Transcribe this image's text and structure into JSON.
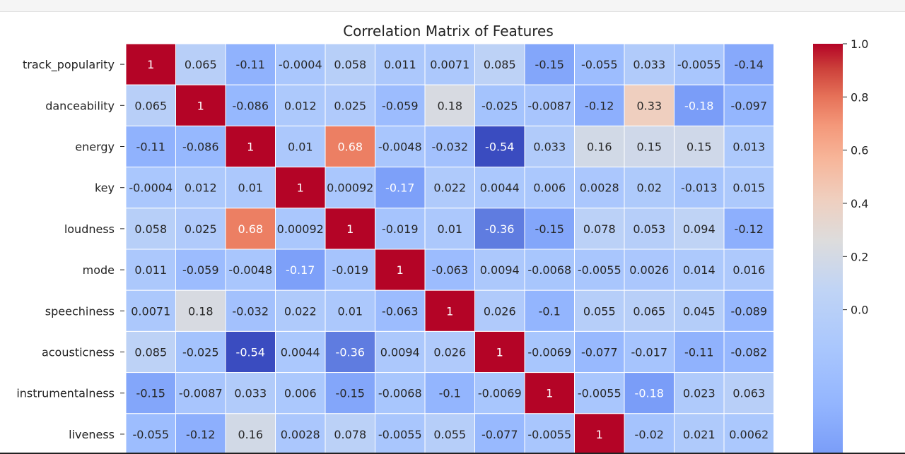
{
  "chart_data": {
    "type": "heatmap",
    "title": "Correlation Matrix of Features",
    "row_labels": [
      "track_popularity",
      "danceability",
      "energy",
      "key",
      "loudness",
      "mode",
      "speechiness",
      "acousticness",
      "instrumentalness",
      "liveness"
    ],
    "n_columns": 13,
    "values": [
      [
        "1",
        "0.065",
        "-0.11",
        "-0.0004",
        "0.058",
        "0.011",
        "0.0071",
        "0.085",
        "-0.15",
        "-0.055",
        "0.033",
        "-0.0055",
        "-0.14"
      ],
      [
        "0.065",
        "1",
        "-0.086",
        "0.012",
        "0.025",
        "-0.059",
        "0.18",
        "-0.025",
        "-0.0087",
        "-0.12",
        "0.33",
        "-0.18",
        "-0.097"
      ],
      [
        "-0.11",
        "-0.086",
        "1",
        "0.01",
        "0.68",
        "-0.0048",
        "-0.032",
        "-0.54",
        "0.033",
        "0.16",
        "0.15",
        "0.15",
        "0.013"
      ],
      [
        "-0.0004",
        "0.012",
        "0.01",
        "1",
        "0.00092",
        "-0.17",
        "0.022",
        "0.0044",
        "0.006",
        "0.0028",
        "0.02",
        "-0.013",
        "0.015"
      ],
      [
        "0.058",
        "0.025",
        "0.68",
        "0.00092",
        "1",
        "-0.019",
        "0.01",
        "-0.36",
        "-0.15",
        "0.078",
        "0.053",
        "0.094",
        "-0.12"
      ],
      [
        "0.011",
        "-0.059",
        "-0.0048",
        "-0.17",
        "-0.019",
        "1",
        "-0.063",
        "0.0094",
        "-0.0068",
        "-0.0055",
        "0.0026",
        "0.014",
        "0.016"
      ],
      [
        "0.0071",
        "0.18",
        "-0.032",
        "0.022",
        "0.01",
        "-0.063",
        "1",
        "0.026",
        "-0.1",
        "0.055",
        "0.065",
        "0.045",
        "-0.089"
      ],
      [
        "0.085",
        "-0.025",
        "-0.54",
        "0.0044",
        "-0.36",
        "0.0094",
        "0.026",
        "1",
        "-0.0069",
        "-0.077",
        "-0.017",
        "-0.11",
        "-0.082"
      ],
      [
        "-0.15",
        "-0.0087",
        "0.033",
        "0.006",
        "-0.15",
        "-0.0068",
        "-0.1",
        "-0.0069",
        "1",
        "-0.0055",
        "-0.18",
        "0.023",
        "0.063"
      ],
      [
        "-0.055",
        "-0.12",
        "0.16",
        "0.0028",
        "0.078",
        "-0.0055",
        "0.055",
        "-0.077",
        "-0.0055",
        "1",
        "-0.02",
        "0.021",
        "0.0062"
      ]
    ],
    "colormap": "coolwarm",
    "vmin": -0.54,
    "vmax": 1.0,
    "colorbar_ticks": [
      "1.0",
      "0.8",
      "0.6",
      "0.4",
      "0.2",
      "0.0"
    ],
    "grid": true,
    "colors": {
      "low": "#3b4cc0",
      "mid": "#dddddd",
      "high": "#b40426"
    }
  }
}
